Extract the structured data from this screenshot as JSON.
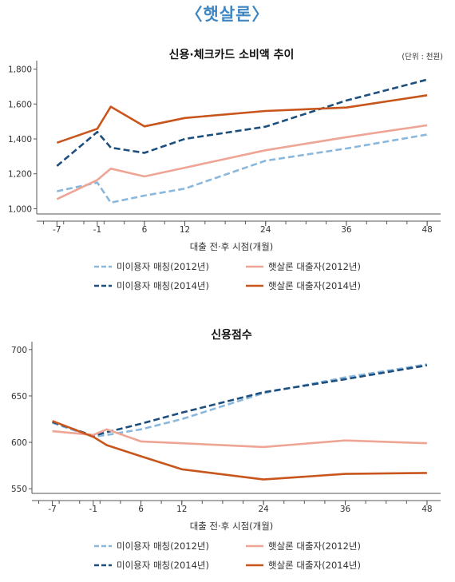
{
  "page_title": "〈햇살론〉",
  "colors": {
    "light_blue": "#8ab8dd",
    "dark_blue": "#1d4f7e",
    "light_orange": "#eea595",
    "dark_orange": "#c8561c"
  },
  "chart_data": [
    {
      "type": "line",
      "title": "신용·체크카드 소비액 추이",
      "unit": "(단위 : 천원)",
      "xlabel": "대출 전·후 시점(개월)",
      "ylabel": "",
      "xlim": [
        -10,
        50
      ],
      "ylim": [
        970,
        1830
      ],
      "xticks": [
        -7,
        -1,
        6,
        12,
        24,
        36,
        48
      ],
      "yticks": [
        1000,
        1200,
        1400,
        1600,
        1800
      ],
      "ytick_labels": [
        "1,000",
        "1,200",
        "1,400",
        "1,600",
        "1,800"
      ],
      "series": [
        {
          "name": "미이용자 매칭(2012년)",
          "color": "#8ab8dd",
          "dash": true,
          "x": [
            -7,
            -1,
            1,
            6,
            12,
            24,
            36,
            48
          ],
          "y": [
            1100,
            1150,
            1035,
            1075,
            1115,
            1275,
            1345,
            1425
          ]
        },
        {
          "name": "미이용자 매칭(2014년)",
          "color": "#1d4f7e",
          "dash": true,
          "x": [
            -7,
            -1,
            1,
            6,
            12,
            24,
            36,
            48
          ],
          "y": [
            1245,
            1440,
            1350,
            1320,
            1400,
            1470,
            1620,
            1740
          ]
        },
        {
          "name": "햇살론 대출자(2012년)",
          "color": "#eea595",
          "dash": false,
          "x": [
            -7,
            -1,
            1,
            6,
            12,
            24,
            36,
            48
          ],
          "y": [
            1055,
            1165,
            1230,
            1185,
            1235,
            1335,
            1410,
            1478
          ]
        },
        {
          "name": "햇살론 대출자(2014년)",
          "color": "#c8561c",
          "dash": false,
          "x": [
            -7,
            -1,
            1,
            6,
            12,
            24,
            36,
            48
          ],
          "y": [
            1378,
            1458,
            1585,
            1472,
            1520,
            1560,
            1580,
            1650
          ]
        }
      ]
    },
    {
      "type": "line",
      "title": "신용점수",
      "unit": "",
      "xlabel": "대출 전·후 시점(개월)",
      "ylabel": "",
      "xlim": [
        -10,
        50
      ],
      "ylim": [
        545,
        705
      ],
      "xticks": [
        -7,
        -1,
        6,
        12,
        24,
        36,
        48
      ],
      "yticks": [
        550,
        600,
        650,
        700
      ],
      "ytick_labels": [
        "550",
        "600",
        "650",
        "700"
      ],
      "series": [
        {
          "name": "미이용자 매칭(2012년)",
          "color": "#8ab8dd",
          "dash": true,
          "x": [
            -7,
            -1,
            1,
            6,
            12,
            24,
            36,
            48
          ],
          "y": [
            621,
            606,
            608,
            614,
            625,
            653,
            670,
            684
          ]
        },
        {
          "name": "미이용자 매칭(2014년)",
          "color": "#1d4f7e",
          "dash": true,
          "x": [
            -7,
            -1,
            1,
            6,
            12,
            24,
            36,
            48
          ],
          "y": [
            622,
            607,
            611,
            620,
            632,
            654,
            668,
            683
          ]
        },
        {
          "name": "햇살론 대출자(2012년)",
          "color": "#eea595",
          "dash": false,
          "x": [
            -7,
            -1,
            1,
            6,
            12,
            24,
            36,
            48
          ],
          "y": [
            612,
            608,
            614,
            601,
            599,
            595,
            602,
            599
          ]
        },
        {
          "name": "햇살론 대출자(2014년)",
          "color": "#c8561c",
          "dash": false,
          "x": [
            -7,
            -1,
            1,
            6,
            12,
            24,
            36,
            48
          ],
          "y": [
            623,
            606,
            597,
            585,
            571,
            560,
            566,
            567
          ]
        }
      ]
    }
  ]
}
